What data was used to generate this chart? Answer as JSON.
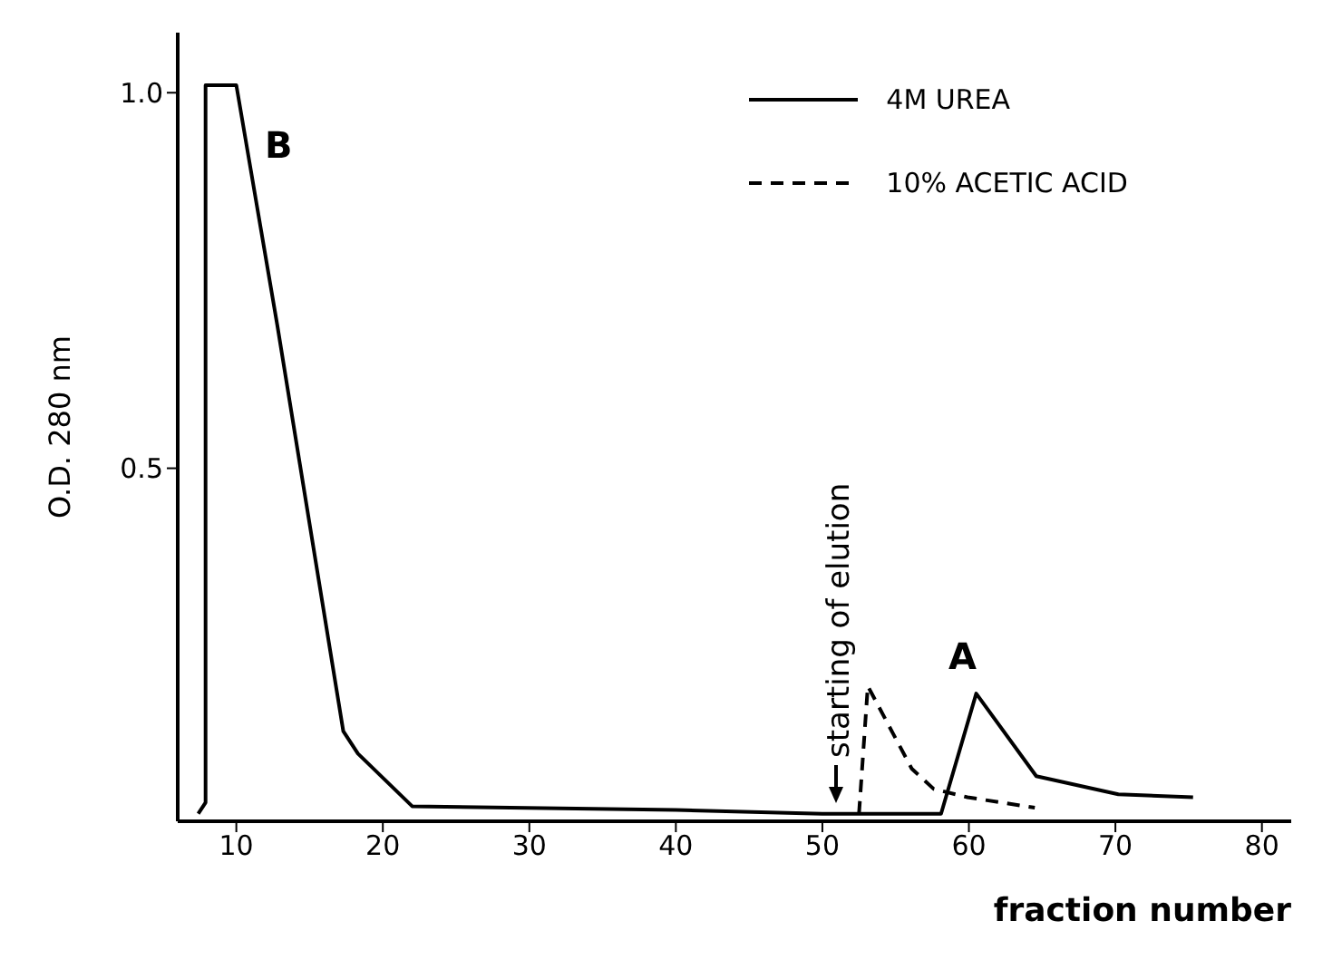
{
  "chart_data": {
    "type": "line",
    "xlabel": "fraction number",
    "ylabel": "O.D. 280 nm",
    "xlim": [
      6,
      82
    ],
    "xticks": [
      10,
      20,
      30,
      40,
      50,
      60,
      70,
      80
    ],
    "ylim": [
      0.03,
      1.08
    ],
    "yticks": [
      {
        "value": 0.5,
        "label": "0.5"
      },
      {
        "value": 1,
        "label": "1.0"
      }
    ],
    "legend": "top right",
    "marker": "none",
    "series": [
      {
        "name": "4M UREA",
        "color": "#000000",
        "line_style": "solid",
        "x": [
          7.4,
          7.9,
          7.9,
          10,
          12.8,
          17.3,
          18.3,
          22,
          40,
          50,
          58.1,
          60.5,
          64.6,
          70.2,
          75.3
        ],
        "values": [
          0.04,
          0.055,
          1.01,
          1.01,
          0.69,
          0.15,
          0.12,
          0.05,
          0.045,
          0.04,
          0.04,
          0.2,
          0.09,
          0.066,
          0.062
        ]
      },
      {
        "name": "10% ACETIC ACID",
        "color": "#000000",
        "line_style": "dashed",
        "x": [
          52.5,
          53.1,
          56.1,
          57.6,
          59.9,
          64.5
        ],
        "values": [
          0.04,
          0.21,
          0.1,
          0.073,
          0.062,
          0.048
        ]
      }
    ],
    "annotations": [
      "B",
      "A",
      "starting of elution"
    ]
  }
}
